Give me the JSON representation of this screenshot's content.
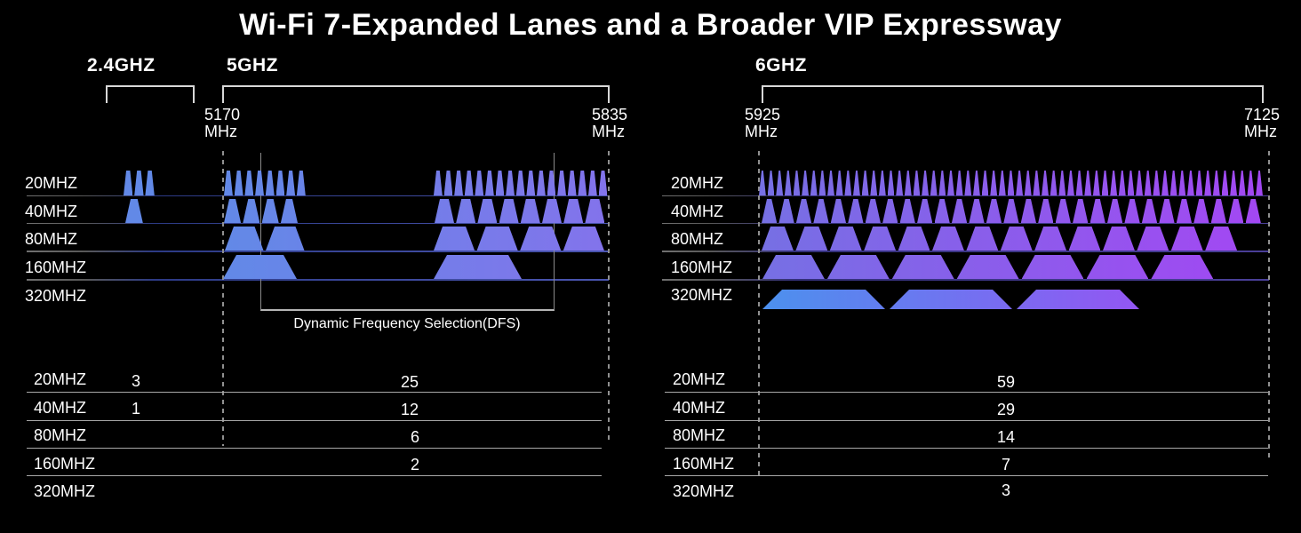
{
  "title": "Wi-Fi 7-Expanded Lanes and a Broader VIP Expressway",
  "band_labels": [
    "2.4GHZ",
    "5GHZ",
    "6GHZ"
  ],
  "freq_labels": [
    {
      "value": "5170",
      "unit": "MHz"
    },
    {
      "value": "5835",
      "unit": "MHz"
    },
    {
      "value": "5925",
      "unit": "MHz"
    },
    {
      "value": "7125",
      "unit": "MHz"
    }
  ],
  "row_labels": [
    "20MHZ",
    "40MHZ",
    "80MHZ",
    "160MHZ",
    "320MHZ"
  ],
  "dfs_label": "Dynamic Frequency Selection(DFS)",
  "tables": {
    "left": {
      "band24_values": [
        "3",
        "1",
        "",
        "",
        ""
      ],
      "band5_values": [
        "25",
        "12",
        "6",
        "2",
        ""
      ]
    },
    "right": {
      "band6_values": [
        "59",
        "29",
        "14",
        "7",
        "3"
      ]
    }
  },
  "colors": {
    "background": "#000000",
    "channel_blue": "#6289e7",
    "channel_indigo": "#8373eb",
    "six_ghz_start": "#7670e4",
    "six_ghz_end": "#a347f3",
    "six_ghz_320_start": "#4b91ee",
    "six_ghz_320_end": "#ab42f4",
    "bracket_line": "#d8d8d8",
    "table_line": "#a8a8a8",
    "dashed_line": "#909090"
  },
  "chart_data": {
    "type": "spectrum-diagram",
    "title": "Wi-Fi 7-Expanded Lanes and a Broader VIP Expressway",
    "rows": [
      "20MHZ",
      "40MHZ",
      "80MHZ",
      "160MHZ",
      "320MHZ"
    ],
    "bands": [
      {
        "name": "2.4GHZ",
        "channel_counts": [
          3,
          1,
          null,
          null,
          null
        ],
        "groups_per_row": [
          [
            3
          ],
          [
            1
          ],
          [],
          [],
          []
        ]
      },
      {
        "name": "5GHZ",
        "range_mhz": [
          5170,
          5835
        ],
        "channel_counts": [
          25,
          12,
          6,
          2,
          null
        ],
        "groups_per_row": [
          [
            8,
            17
          ],
          [
            4,
            8
          ],
          [
            2,
            4
          ],
          [
            1,
            1
          ],
          []
        ],
        "note": "Dynamic Frequency Selection(DFS)"
      },
      {
        "name": "6GHZ",
        "range_mhz": [
          5925,
          7125
        ],
        "channel_counts": [
          59,
          29,
          14,
          7,
          3
        ],
        "groups_per_row": [
          [
            59
          ],
          [
            29
          ],
          [
            14
          ],
          [
            7
          ],
          [
            3
          ]
        ]
      }
    ]
  }
}
